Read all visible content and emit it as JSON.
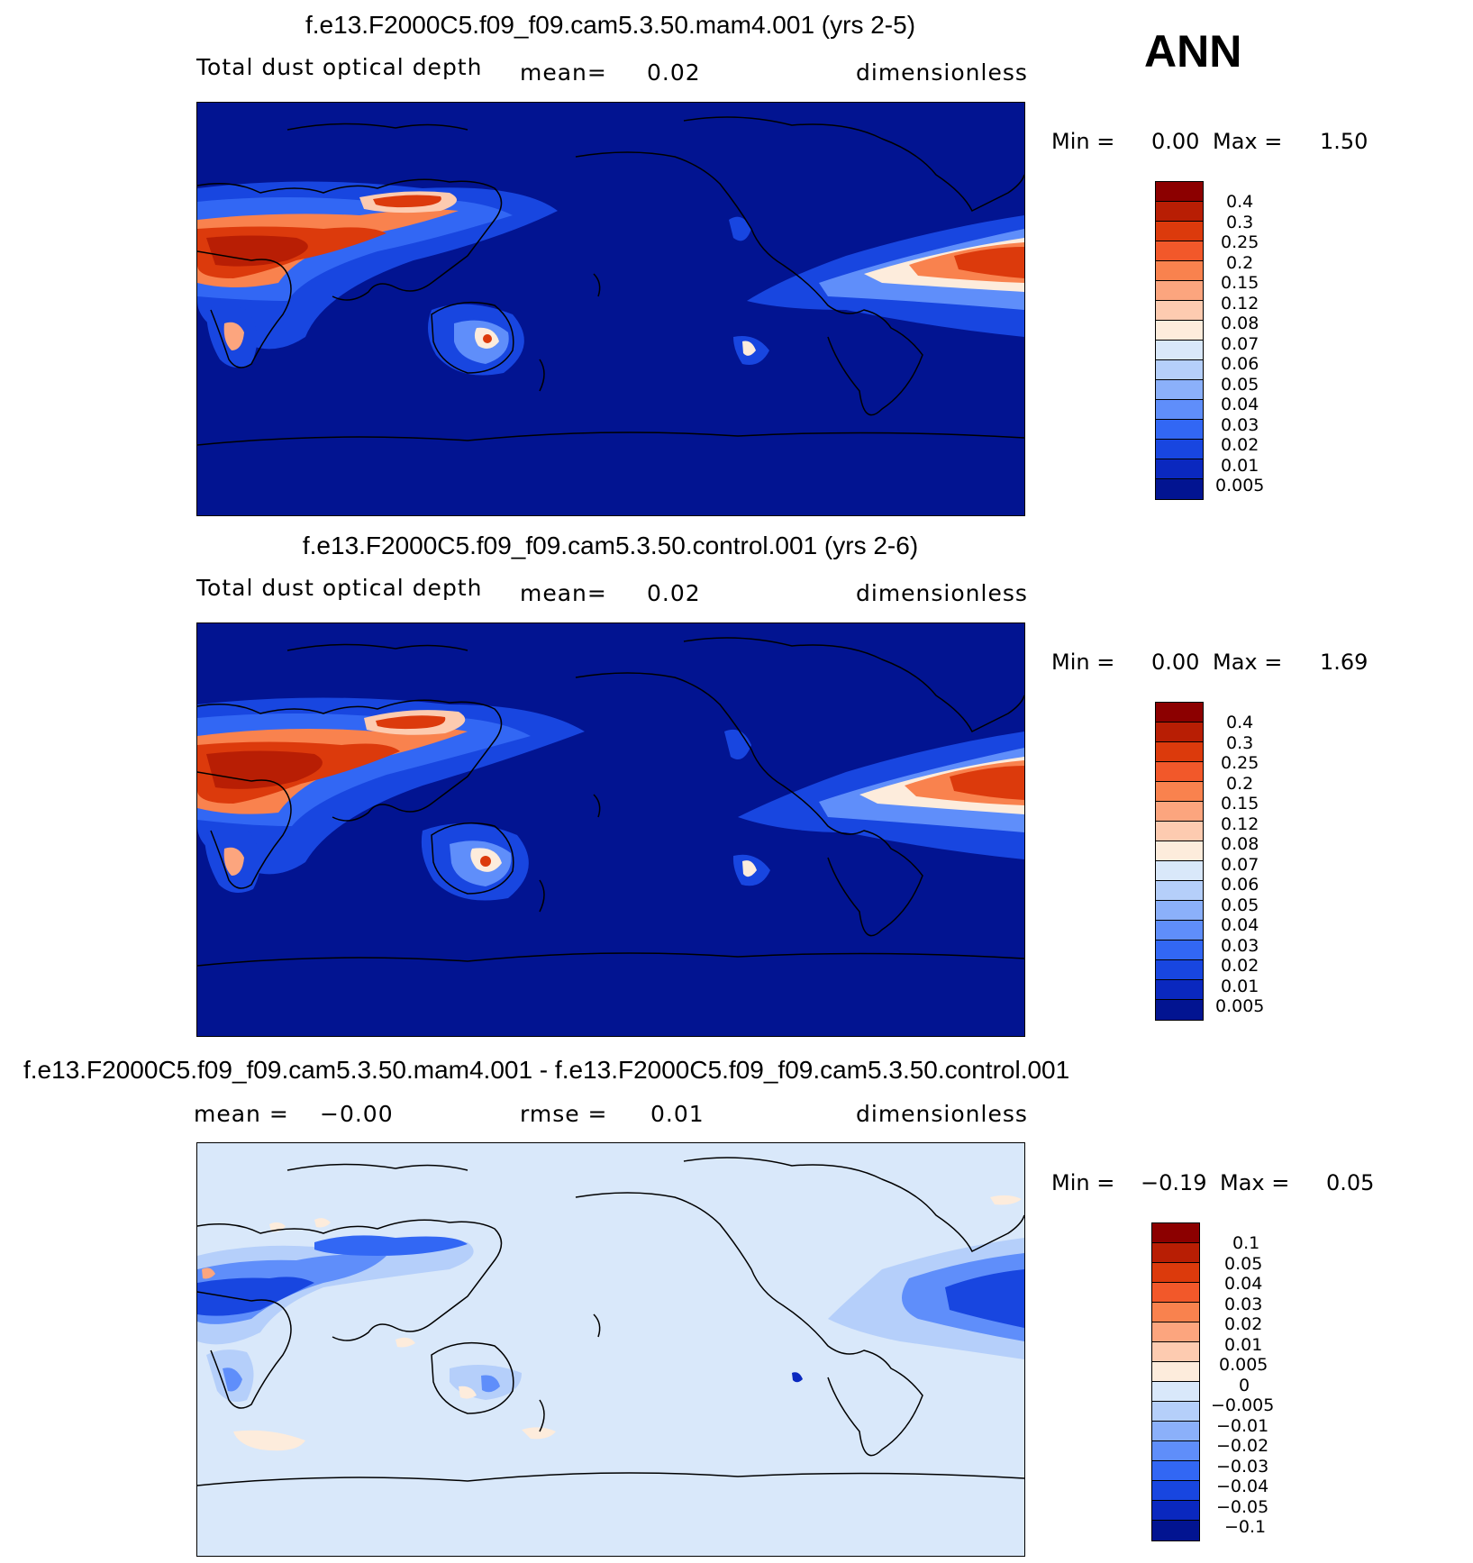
{
  "season": "ANN",
  "panels": [
    {
      "title": "f.e13.F2000C5.f09_f09.cam5.3.50.mam4.001 (yrs 2-5)",
      "variable": "Total dust optical depth",
      "stat1_label": "mean=",
      "stat1_value": "0.02",
      "units": "dimensionless",
      "min_label": "Min =",
      "min_value": "0.00",
      "max_label": "Max =",
      "max_value": "1.50",
      "colorbar_labels": [
        "0.4",
        "0.3",
        "0.25",
        "0.2",
        "0.15",
        "0.12",
        "0.08",
        "0.07",
        "0.06",
        "0.05",
        "0.04",
        "0.03",
        "0.02",
        "0.01",
        "0.005"
      ],
      "colorbar_colors": [
        "#8c0000",
        "#b81e04",
        "#dc3a0c",
        "#f2582a",
        "#f9824e",
        "#fca57e",
        "#fdcbb0",
        "#fdecdc",
        "#d9e8fa",
        "#b5cffa",
        "#8bb0fa",
        "#5f8efa",
        "#3267f4",
        "#1846e0",
        "#0a28bf",
        "#021491"
      ]
    },
    {
      "title": "f.e13.F2000C5.f09_f09.cam5.3.50.control.001 (yrs 2-6)",
      "variable": "Total dust optical depth",
      "stat1_label": "mean=",
      "stat1_value": "0.02",
      "units": "dimensionless",
      "min_label": "Min =",
      "min_value": "0.00",
      "max_label": "Max =",
      "max_value": "1.69",
      "colorbar_labels": [
        "0.4",
        "0.3",
        "0.25",
        "0.2",
        "0.15",
        "0.12",
        "0.08",
        "0.07",
        "0.06",
        "0.05",
        "0.04",
        "0.03",
        "0.02",
        "0.01",
        "0.005"
      ],
      "colorbar_colors": [
        "#8c0000",
        "#b81e04",
        "#dc3a0c",
        "#f2582a",
        "#f9824e",
        "#fca57e",
        "#fdcbb0",
        "#fdecdc",
        "#d9e8fa",
        "#b5cffa",
        "#8bb0fa",
        "#5f8efa",
        "#3267f4",
        "#1846e0",
        "#0a28bf",
        "#021491"
      ]
    },
    {
      "title": "f.e13.F2000C5.f09_f09.cam5.3.50.mam4.001 - f.e13.F2000C5.f09_f09.cam5.3.50.control.001",
      "stat1_label": "mean =",
      "stat1_value": "−0.00",
      "stat2_label": "rmse =",
      "stat2_value": "0.01",
      "units": "dimensionless",
      "min_label": "Min =",
      "min_value": "−0.19",
      "max_label": "Max =",
      "max_value": "0.05",
      "colorbar_labels": [
        "0.1",
        "0.05",
        "0.04",
        "0.03",
        "0.02",
        "0.01",
        "0.005",
        "0",
        "−0.005",
        "−0.01",
        "−0.02",
        "−0.03",
        "−0.04",
        "−0.05",
        "−0.1"
      ],
      "colorbar_colors": [
        "#8c0000",
        "#b81e04",
        "#dc3a0c",
        "#f2582a",
        "#f9824e",
        "#fca57e",
        "#fdcbb0",
        "#fdecdc",
        "#d9e8fa",
        "#b5cffa",
        "#8bb0fa",
        "#5f8efa",
        "#3267f4",
        "#1846e0",
        "#0a28bf",
        "#021491"
      ]
    }
  ]
}
